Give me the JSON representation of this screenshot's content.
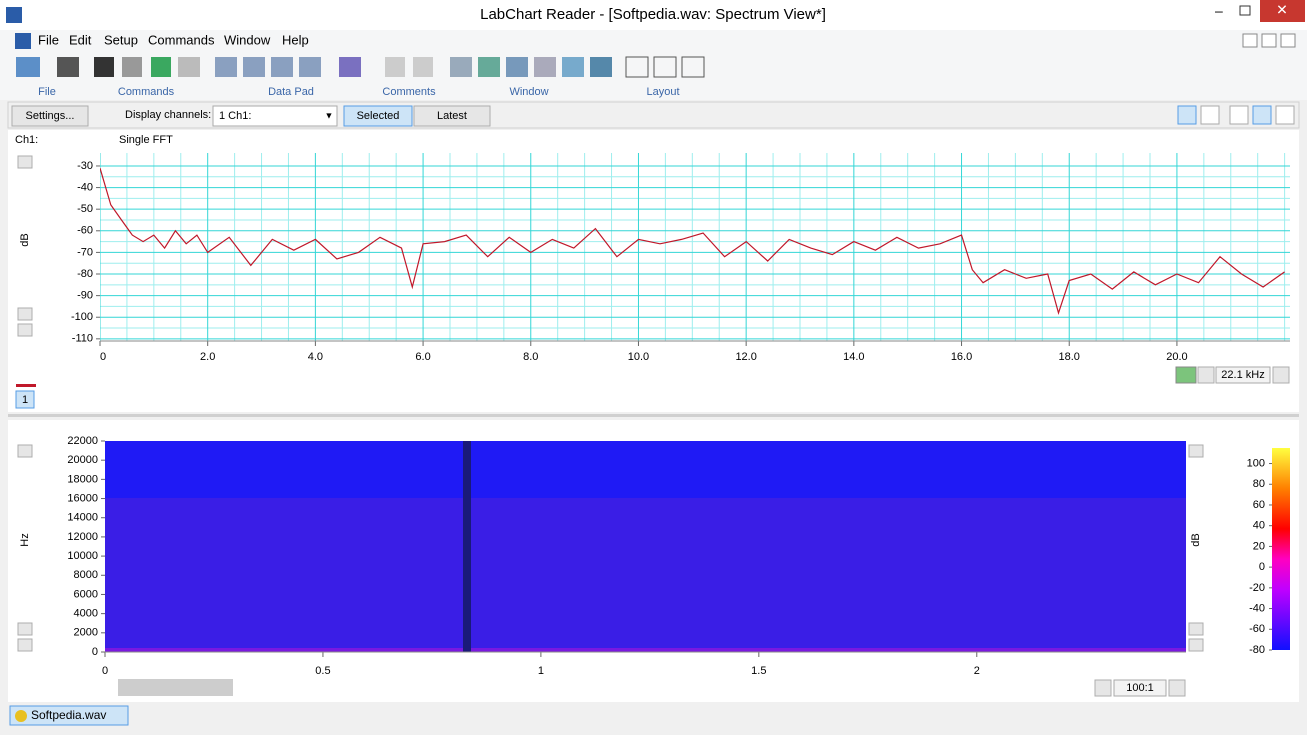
{
  "window": {
    "title": "LabChart Reader - [Softpedia.wav: Spectrum View*]"
  },
  "menu": [
    "File",
    "Edit",
    "Setup",
    "Commands",
    "Window",
    "Help"
  ],
  "toolbar_groups": [
    "File",
    "Commands",
    "Data Pad",
    "Comments",
    "Window",
    "Layout"
  ],
  "controls": {
    "settings": "Settings...",
    "display_label": "Display channels:",
    "channel_select": "1 Ch1:",
    "selected": "Selected",
    "latest": "Latest"
  },
  "chart_data": [
    {
      "type": "line",
      "channel": "Ch1:",
      "subtitle": "Single FFT",
      "ylabel": "dB",
      "scale_label": "22.1 kHz",
      "channel_button": "1",
      "color": "#c0182a",
      "grid": true,
      "xlim": [
        0,
        22.1
      ],
      "ylim": [
        -111,
        -24
      ],
      "xticks": [
        0,
        {
          "value": 2,
          "label": "2.0"
        },
        {
          "value": 4,
          "label": "4.0"
        },
        {
          "value": 6,
          "label": "6.0"
        },
        {
          "value": 8,
          "label": "8.0"
        },
        {
          "value": 10,
          "label": "10.0"
        },
        {
          "value": 12,
          "label": "12.0"
        },
        {
          "value": 14,
          "label": "14.0"
        },
        {
          "value": 16,
          "label": "16.0"
        },
        {
          "value": 18,
          "label": "18.0"
        },
        {
          "value": 20,
          "label": "20.0"
        }
      ],
      "yticks": [
        -30,
        -40,
        -50,
        -60,
        -70,
        -80,
        -90,
        -100,
        -110
      ],
      "x": [
        0,
        0.2,
        0.4,
        0.6,
        0.8,
        1.0,
        1.2,
        1.4,
        1.6,
        1.8,
        2.0,
        2.4,
        2.8,
        3.2,
        3.6,
        4.0,
        4.4,
        4.8,
        5.2,
        5.6,
        5.8,
        6.0,
        6.4,
        6.8,
        7.2,
        7.6,
        8.0,
        8.4,
        8.8,
        9.2,
        9.6,
        10.0,
        10.4,
        10.8,
        11.2,
        11.6,
        12.0,
        12.4,
        12.8,
        13.2,
        13.6,
        14.0,
        14.4,
        14.8,
        15.2,
        15.6,
        16.0,
        16.2,
        16.4,
        16.8,
        17.2,
        17.6,
        17.8,
        18.0,
        18.4,
        18.8,
        19.2,
        19.6,
        20.0,
        20.4,
        20.8,
        21.2,
        21.6,
        22.0
      ],
      "values": [
        -31,
        -48,
        -55,
        -62,
        -65,
        -62,
        -68,
        -60,
        -66,
        -62,
        -70,
        -63,
        -76,
        -64,
        -69,
        -64,
        -73,
        -70,
        -63,
        -68,
        -86,
        -66,
        -65,
        -62,
        -72,
        -63,
        -70,
        -64,
        -68,
        -59,
        -72,
        -64,
        -66,
        -64,
        -61,
        -72,
        -65,
        -74,
        -64,
        -68,
        -71,
        -65,
        -69,
        -63,
        -68,
        -66,
        -62,
        -78,
        -84,
        -78,
        -82,
        -80,
        -98,
        -83,
        -80,
        -87,
        -79,
        -85,
        -80,
        -84,
        -72,
        -80,
        -86,
        -79
      ]
    },
    {
      "type": "spectrogram",
      "ylabel": "Hz",
      "zlabel": "dB",
      "zoom": "100:1",
      "xlim": [
        0,
        2.48
      ],
      "ylim": [
        0,
        22000
      ],
      "xticks": [
        0,
        0.5,
        1,
        1.5,
        2
      ],
      "yticks": [
        0,
        2000,
        4000,
        6000,
        8000,
        10000,
        12000,
        14000,
        16000,
        18000,
        20000,
        22000
      ],
      "zlim": [
        -80,
        115
      ],
      "zticks": [
        -80,
        -60,
        -40,
        -20,
        0,
        20,
        40,
        60,
        80,
        100
      ]
    }
  ],
  "taskbar": {
    "tab": "Softpedia.wav"
  }
}
